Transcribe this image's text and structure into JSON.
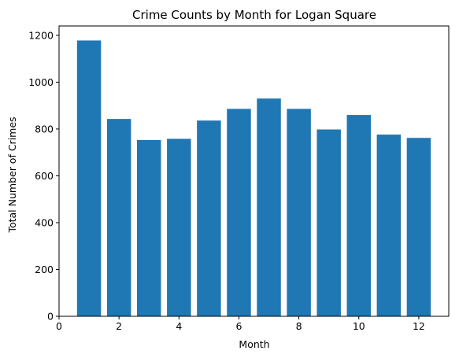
{
  "chart_data": {
    "type": "bar",
    "title": "Crime Counts by Month for Logan Square",
    "xlabel": "Month",
    "ylabel": "Total Number of Crimes",
    "x": [
      1,
      2,
      3,
      4,
      5,
      6,
      7,
      8,
      9,
      10,
      11,
      12
    ],
    "values": [
      1178,
      843,
      753,
      758,
      836,
      886,
      930,
      886,
      798,
      860,
      776,
      762
    ],
    "xlim": [
      0,
      13
    ],
    "ylim": [
      0,
      1240
    ],
    "xticks": [
      "0",
      "2",
      "4",
      "6",
      "8",
      "10",
      "12"
    ],
    "yticks": [
      "0",
      "200",
      "400",
      "600",
      "800",
      "1000",
      "1200"
    ],
    "bar_color": "#1f77b4",
    "grid": false,
    "legend": "none"
  }
}
